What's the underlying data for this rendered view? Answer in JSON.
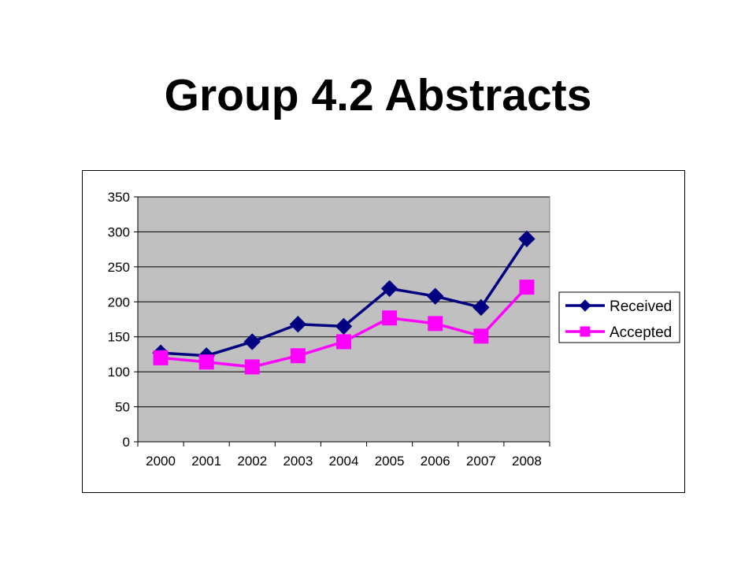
{
  "title": "Group 4.2 Abstracts",
  "chart_data": {
    "type": "line",
    "categories": [
      "2000",
      "2001",
      "2002",
      "2003",
      "2004",
      "2005",
      "2006",
      "2007",
      "2008"
    ],
    "series": [
      {
        "name": "Received",
        "color": "#000080",
        "marker": "diamond",
        "values": [
          127,
          123,
          143,
          168,
          165,
          219,
          208,
          192,
          290
        ]
      },
      {
        "name": "Accepted",
        "color": "#ff00ff",
        "marker": "square",
        "values": [
          120,
          114,
          107,
          123,
          143,
          177,
          169,
          151,
          221
        ]
      }
    ],
    "ylim": [
      0,
      350
    ],
    "yticks": [
      0,
      50,
      100,
      150,
      200,
      250,
      300,
      350
    ],
    "plot_background": "#c0c0c0",
    "grid": true,
    "legend_position": "right"
  }
}
